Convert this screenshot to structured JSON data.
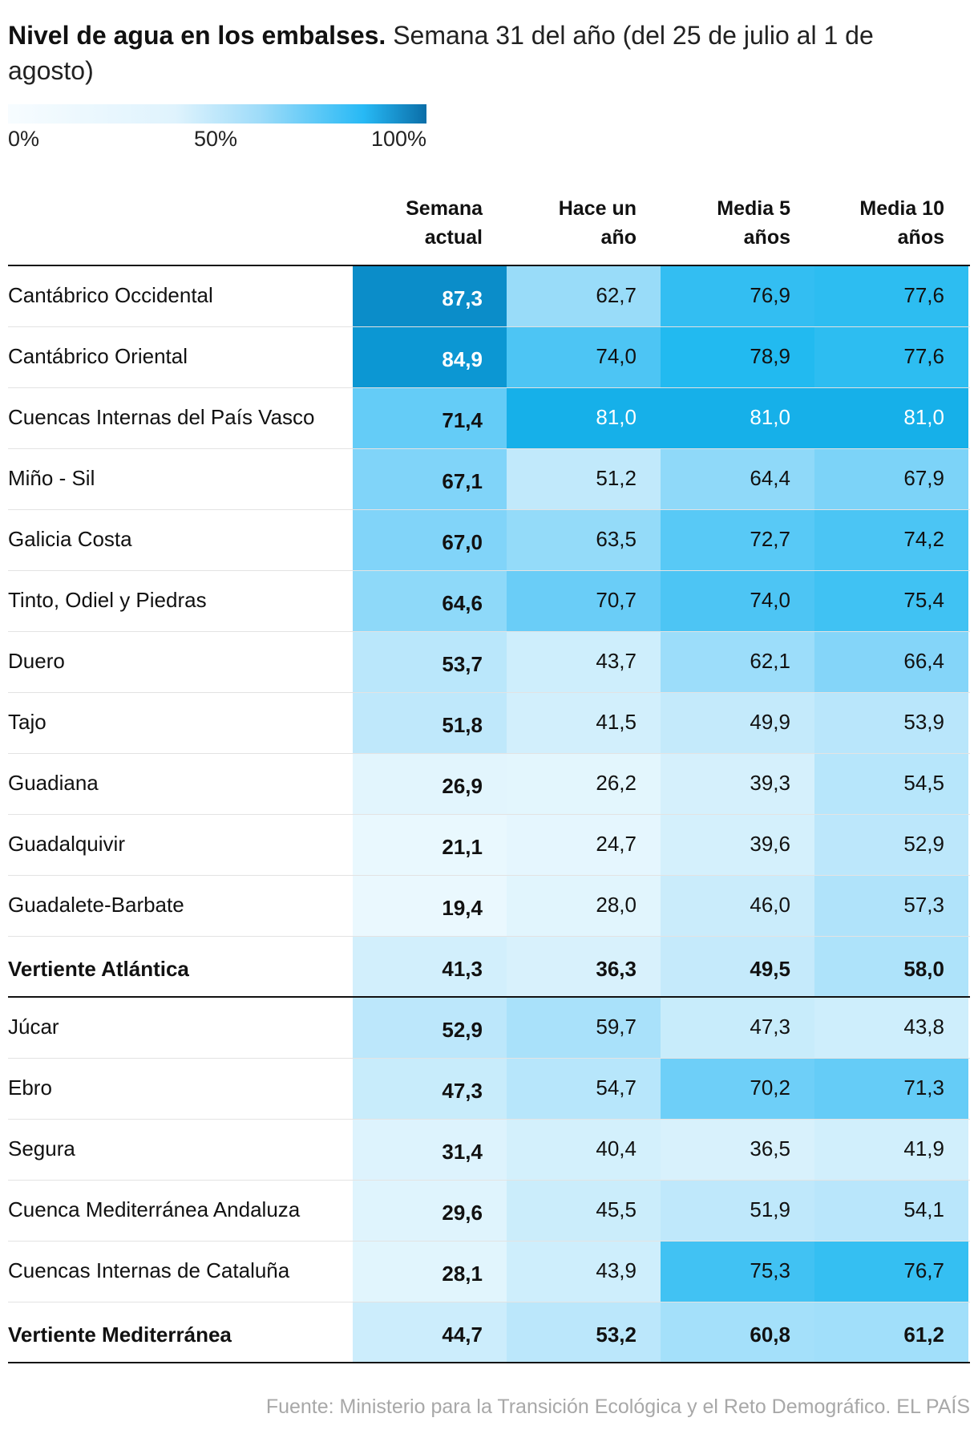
{
  "title": {
    "bold": "Nivel de agua en los embalses.",
    "rest": "Semana 31 del año (del 25 de julio al 1 de agosto)"
  },
  "legend": {
    "min_label": "0%",
    "mid_label": "50%",
    "max_label": "100%",
    "colors": [
      "#f7fcff",
      "#9fdcf9",
      "#27b9f5",
      "#0b6ea8"
    ]
  },
  "columns": [
    {
      "line1": "Semana",
      "line2": "actual"
    },
    {
      "line1": "Hace un",
      "line2": "año"
    },
    {
      "line1": "Media 5",
      "line2": "años"
    },
    {
      "line1": "Media 10",
      "line2": "años"
    }
  ],
  "rows": [
    {
      "name": "Cantábrico Occidental",
      "values": [
        "87,3",
        "62,7",
        "76,9",
        "77,6"
      ]
    },
    {
      "name": "Cantábrico Oriental",
      "values": [
        "84,9",
        "74,0",
        "78,9",
        "77,6"
      ]
    },
    {
      "name": "Cuencas Internas del País Vasco",
      "values": [
        "71,4",
        "81,0",
        "81,0",
        "81,0"
      ]
    },
    {
      "name": "Miño - Sil",
      "values": [
        "67,1",
        "51,2",
        "64,4",
        "67,9"
      ]
    },
    {
      "name": "Galicia Costa",
      "values": [
        "67,0",
        "63,5",
        "72,7",
        "74,2"
      ]
    },
    {
      "name": "Tinto, Odiel y Piedras",
      "values": [
        "64,6",
        "70,7",
        "74,0",
        "75,4"
      ]
    },
    {
      "name": "Duero",
      "values": [
        "53,7",
        "43,7",
        "62,1",
        "66,4"
      ]
    },
    {
      "name": "Tajo",
      "values": [
        "51,8",
        "41,5",
        "49,9",
        "53,9"
      ]
    },
    {
      "name": "Guadiana",
      "values": [
        "26,9",
        "26,2",
        "39,3",
        "54,5"
      ]
    },
    {
      "name": "Guadalquivir",
      "values": [
        "21,1",
        "24,7",
        "39,6",
        "52,9"
      ]
    },
    {
      "name": "Guadalete-Barbate",
      "values": [
        "19,4",
        "28,0",
        "46,0",
        "57,3"
      ]
    },
    {
      "name": "Vertiente Atlántica",
      "values": [
        "41,3",
        "36,3",
        "49,5",
        "58,0"
      ],
      "total": true
    },
    {
      "name": "Júcar",
      "values": [
        "52,9",
        "59,7",
        "47,3",
        "43,8"
      ]
    },
    {
      "name": "Ebro",
      "values": [
        "47,3",
        "54,7",
        "70,2",
        "71,3"
      ]
    },
    {
      "name": "Segura",
      "values": [
        "31,4",
        "40,4",
        "36,5",
        "41,9"
      ]
    },
    {
      "name": "Cuenca Mediterránea Andaluza",
      "values": [
        "29,6",
        "45,5",
        "51,9",
        "54,1"
      ]
    },
    {
      "name": "Cuencas Internas de Cataluña",
      "values": [
        "28,1",
        "43,9",
        "75,3",
        "76,7"
      ]
    },
    {
      "name": "Vertiente Mediterránea",
      "values": [
        "44,7",
        "53,2",
        "60,8",
        "61,2"
      ],
      "total": true
    }
  ],
  "source": "Fuente: Ministerio para la Transición Ecológica y el Reto Demográfico. EL PAÍS",
  "chart_data": {
    "type": "table",
    "title": "Nivel de agua en los embalses. Semana 31 del año (del 25 de julio al 1 de agosto)",
    "columns": [
      "Semana actual",
      "Hace un año",
      "Media 5 años",
      "Media 10 años"
    ],
    "rows": [
      {
        "name": "Cantábrico Occidental",
        "values": [
          87.3,
          62.7,
          76.9,
          77.6
        ]
      },
      {
        "name": "Cantábrico Oriental",
        "values": [
          84.9,
          74.0,
          78.9,
          77.6
        ]
      },
      {
        "name": "Cuencas Internas del País Vasco",
        "values": [
          71.4,
          81.0,
          81.0,
          81.0
        ]
      },
      {
        "name": "Miño - Sil",
        "values": [
          67.1,
          51.2,
          64.4,
          67.9
        ]
      },
      {
        "name": "Galicia Costa",
        "values": [
          67.0,
          63.5,
          72.7,
          74.2
        ]
      },
      {
        "name": "Tinto, Odiel y Piedras",
        "values": [
          64.6,
          70.7,
          74.0,
          75.4
        ]
      },
      {
        "name": "Duero",
        "values": [
          53.7,
          43.7,
          62.1,
          66.4
        ]
      },
      {
        "name": "Tajo",
        "values": [
          51.8,
          41.5,
          49.9,
          53.9
        ]
      },
      {
        "name": "Guadiana",
        "values": [
          26.9,
          26.2,
          39.3,
          54.5
        ]
      },
      {
        "name": "Guadalquivir",
        "values": [
          21.1,
          24.7,
          39.6,
          52.9
        ]
      },
      {
        "name": "Guadalete-Barbate",
        "values": [
          19.4,
          28.0,
          46.0,
          57.3
        ]
      },
      {
        "name": "Vertiente Atlántica",
        "values": [
          41.3,
          36.3,
          49.5,
          58.0
        ]
      },
      {
        "name": "Júcar",
        "values": [
          52.9,
          59.7,
          47.3,
          43.8
        ]
      },
      {
        "name": "Ebro",
        "values": [
          47.3,
          54.7,
          70.2,
          71.3
        ]
      },
      {
        "name": "Segura",
        "values": [
          31.4,
          40.4,
          36.5,
          41.9
        ]
      },
      {
        "name": "Cuenca Mediterránea Andaluza",
        "values": [
          29.6,
          45.5,
          51.9,
          54.1
        ]
      },
      {
        "name": "Cuencas Internas de Cataluña",
        "values": [
          28.1,
          43.9,
          75.3,
          76.7
        ]
      },
      {
        "name": "Vertiente Mediterránea",
        "values": [
          44.7,
          53.2,
          60.8,
          61.2
        ]
      }
    ],
    "color_scale": {
      "min": 0,
      "max": 100,
      "unit": "%"
    }
  }
}
